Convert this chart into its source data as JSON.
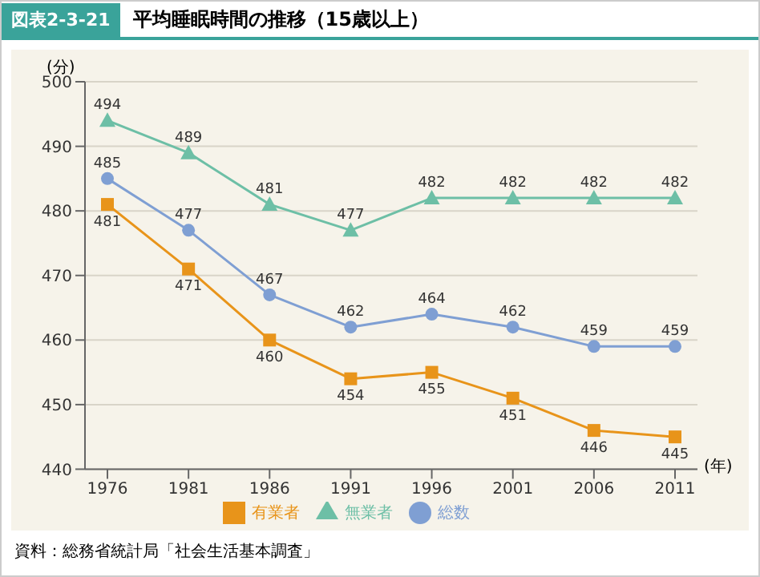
{
  "chart_data": {
    "type": "line",
    "title": "平均睡眠時間の推移（15歳以上）",
    "ylabel": "(分)",
    "xlabel": "(年)",
    "annotations": [
      "図表2-3-21",
      "資料：総務省統計局「社会生活基本調査」"
    ],
    "categories": [
      "1976",
      "1981",
      "1986",
      "1991",
      "1996",
      "2001",
      "2006",
      "2011"
    ],
    "series": [
      {
        "name": "総数",
        "color": "#7f9fd3",
        "marker": "circle",
        "values": [
          485,
          477,
          467,
          462,
          464,
          462,
          459,
          459
        ]
      },
      {
        "name": "有業者",
        "color": "#e8941a",
        "marker": "square",
        "values": [
          481,
          471,
          460,
          454,
          455,
          451,
          446,
          445
        ]
      },
      {
        "name": "無業者",
        "color": "#6dbfa6",
        "marker": "triangle",
        "values": [
          494,
          489,
          481,
          477,
          482,
          482,
          482,
          482
        ]
      }
    ],
    "ylim": [
      440,
      500
    ],
    "yticks": [
      440,
      450,
      460,
      470,
      480,
      490,
      500
    ],
    "grid": "y",
    "legend": "bottom",
    "data_labels": true
  }
}
